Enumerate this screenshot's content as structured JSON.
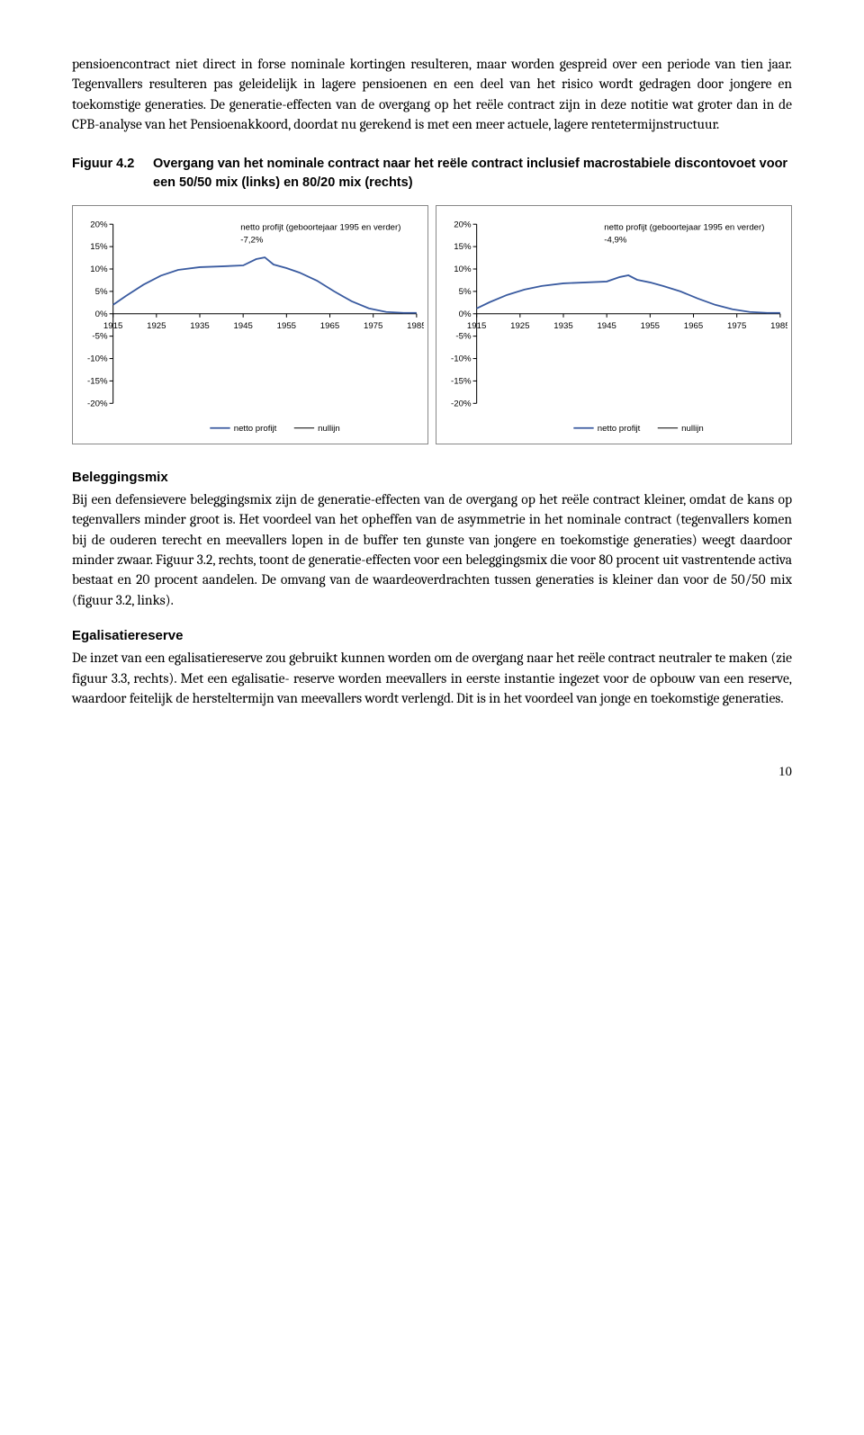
{
  "page_number": "10",
  "intro_paragraph": "pensioencontract niet direct in forse nominale kortingen resulteren, maar worden gespreid over een periode van tien jaar. Tegenvallers resulteren pas geleidelijk in lagere pensioenen en een deel van het risico wordt gedragen door jongere en toekomstige generaties. De generatie-effecten van de overgang op het reële contract zijn in deze notitie wat groter dan in de CPB-analyse van het Pensioenakkoord, doordat nu gerekend is met een meer actuele, lagere rentetermijnstructuur.",
  "figure": {
    "label": "Figuur 4.2",
    "title": "Overgang van het nominale contract naar het reële contract inclusief macrostabiele discontovoet voor een 50/50 mix (links) en 80/20 mix (rechts)"
  },
  "chart_shared": {
    "ylim": [
      -20,
      20
    ],
    "ytick_step": 5,
    "yticks": [
      "20%",
      "15%",
      "10%",
      "5%",
      "0%",
      "-5%",
      "-10%",
      "-15%",
      "-20%"
    ],
    "xlim": [
      1915,
      1985
    ],
    "xticks": [
      1915,
      1925,
      1935,
      1945,
      1955,
      1965,
      1975,
      1985
    ],
    "annotation_line1": "netto profijt (geboortejaar 1995 en verder)",
    "legend_series": "netto profijt",
    "legend_zero": "nullijn",
    "line_color": "#3a5ba0",
    "zero_color": "#000000",
    "grid_color": "#000000",
    "tick_fontsize": 9.5,
    "annotation_fontsize": 9.5
  },
  "chart_left": {
    "annotation_value": "-7,2%",
    "series": [
      {
        "x": 1915,
        "y": 2.0
      },
      {
        "x": 1918,
        "y": 4.0
      },
      {
        "x": 1922,
        "y": 6.5
      },
      {
        "x": 1926,
        "y": 8.5
      },
      {
        "x": 1930,
        "y": 9.8
      },
      {
        "x": 1935,
        "y": 10.4
      },
      {
        "x": 1940,
        "y": 10.6
      },
      {
        "x": 1945,
        "y": 10.8
      },
      {
        "x": 1948,
        "y": 12.2
      },
      {
        "x": 1950,
        "y": 12.6
      },
      {
        "x": 1952,
        "y": 11.0
      },
      {
        "x": 1955,
        "y": 10.2
      },
      {
        "x": 1958,
        "y": 9.2
      },
      {
        "x": 1962,
        "y": 7.4
      },
      {
        "x": 1966,
        "y": 5.0
      },
      {
        "x": 1970,
        "y": 2.8
      },
      {
        "x": 1974,
        "y": 1.2
      },
      {
        "x": 1978,
        "y": 0.4
      },
      {
        "x": 1982,
        "y": 0.2
      },
      {
        "x": 1985,
        "y": 0.2
      }
    ]
  },
  "chart_right": {
    "annotation_value": "-4,9%",
    "series": [
      {
        "x": 1915,
        "y": 1.2
      },
      {
        "x": 1918,
        "y": 2.6
      },
      {
        "x": 1922,
        "y": 4.2
      },
      {
        "x": 1926,
        "y": 5.4
      },
      {
        "x": 1930,
        "y": 6.2
      },
      {
        "x": 1935,
        "y": 6.8
      },
      {
        "x": 1940,
        "y": 7.0
      },
      {
        "x": 1945,
        "y": 7.2
      },
      {
        "x": 1948,
        "y": 8.2
      },
      {
        "x": 1950,
        "y": 8.6
      },
      {
        "x": 1952,
        "y": 7.6
      },
      {
        "x": 1955,
        "y": 7.0
      },
      {
        "x": 1958,
        "y": 6.2
      },
      {
        "x": 1962,
        "y": 5.0
      },
      {
        "x": 1966,
        "y": 3.4
      },
      {
        "x": 1970,
        "y": 2.0
      },
      {
        "x": 1974,
        "y": 1.0
      },
      {
        "x": 1978,
        "y": 0.4
      },
      {
        "x": 1982,
        "y": 0.2
      },
      {
        "x": 1985,
        "y": 0.2
      }
    ]
  },
  "sections": [
    {
      "heading": "Beleggingsmix",
      "body": "Bij een defensievere beleggingsmix zijn de generatie-effecten van de overgang op het reële contract kleiner, omdat de kans op tegenvallers minder groot is. Het voordeel van het opheffen van de asymmetrie in het nominale contract (tegenvallers komen bij de ouderen terecht en meevallers lopen in de buffer ten gunste van jongere en toekomstige generaties) weegt daardoor minder zwaar. Figuur 3.2, rechts, toont de generatie-effecten voor een beleggingsmix die voor 80 procent uit vastrentende activa bestaat en 20 procent aandelen. De omvang van de waardeoverdrachten tussen generaties is kleiner dan voor de 50/50 mix (figuur 3.2, links)."
    },
    {
      "heading": "Egalisatiereserve",
      "body": "De inzet van een egalisatiereserve zou gebruikt kunnen worden om de overgang naar het reële contract neutraler te maken (zie figuur 3.3, rechts). Met een egalisatie-\nreserve worden meevallers in eerste instantie ingezet voor de opbouw van een reserve, waardoor feitelijk de hersteltermijn van meevallers wordt verlengd. Dit is in het voordeel van jonge en toekomstige generaties."
    }
  ]
}
